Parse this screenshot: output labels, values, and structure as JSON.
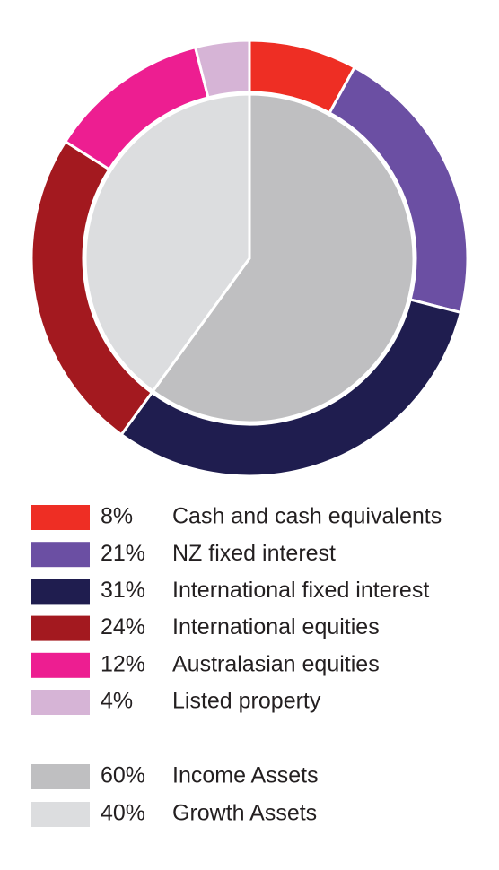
{
  "chart_data": {
    "type": "donut",
    "outer": {
      "categories": [
        "Cash and cash equivalents",
        "NZ fixed interest",
        "International fixed interest",
        "International equities",
        "Australasian equities",
        "Listed property"
      ],
      "values": [
        8,
        21,
        31,
        24,
        12,
        4
      ],
      "value_labels": [
        "8%",
        "21%",
        "31%",
        "24%",
        "12%",
        "4%"
      ],
      "colors": [
        "#ee2e24",
        "#6b4fa3",
        "#1f1d4f",
        "#a3191f",
        "#ed1e91",
        "#d6b4d6"
      ]
    },
    "inner": {
      "categories": [
        "Income Assets",
        "Growth Assets"
      ],
      "values": [
        60,
        40
      ],
      "value_labels": [
        "60%",
        "40%"
      ],
      "colors": [
        "#bfbfc1",
        "#dcdddf"
      ]
    }
  }
}
